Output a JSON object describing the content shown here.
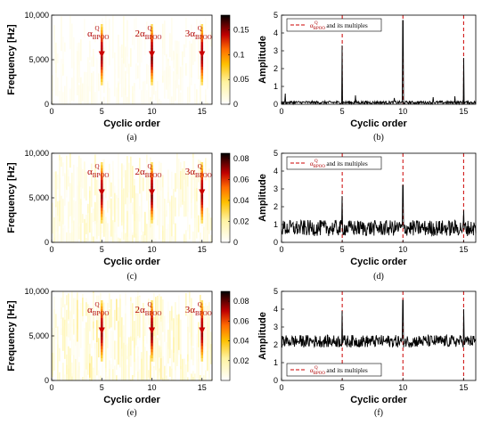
{
  "figure": {
    "captions": [
      "(a)",
      "(b)",
      "(c)",
      "(d)",
      "(e)",
      "(f)"
    ]
  },
  "colors": {
    "colormap_low": "#ffffff",
    "colormap_mid": "#ffcc00",
    "colormap_high": "#000000",
    "peak_red": "#cc0000",
    "annotation_red": "#b00000",
    "line": "#000000"
  },
  "chart_data": [
    {
      "type": "heatmap",
      "panel": "a",
      "xlabel": "Cyclic order",
      "ylabel": "Frequency [Hz]",
      "xlim": [
        0,
        16
      ],
      "ylim": [
        0,
        10000
      ],
      "x_ticks": [
        0,
        5,
        10,
        15
      ],
      "x_tick_labels": [
        "0",
        "5",
        "10",
        "15"
      ],
      "y_ticks": [
        0,
        5000,
        10000
      ],
      "y_tick_labels": [
        "0",
        "5,000",
        "10,000"
      ],
      "colorbar_ticks": [
        0,
        0.05,
        0.1,
        0.15
      ],
      "colorbar_tick_labels": [
        "0",
        "0.05",
        "0.1",
        "0.15"
      ],
      "colorbar_max": 0.18,
      "peaks": [
        5,
        10,
        15
      ],
      "peak_band_hz": [
        2500,
        9000
      ],
      "annotations": [
        {
          "prefix": "α",
          "sub": "BPOO",
          "sup": "Q",
          "x": 5
        },
        {
          "prefix": "2α",
          "sub": "BPOO",
          "sup": "Q",
          "x": 10
        },
        {
          "prefix": "3α",
          "sub": "BPOO",
          "sup": "Q",
          "x": 15
        }
      ],
      "noise_level": 0.12
    },
    {
      "type": "line",
      "panel": "b",
      "xlabel": "Cyclic order",
      "ylabel": "Amplitude",
      "xlim": [
        0,
        16
      ],
      "ylim": [
        0,
        5
      ],
      "x_ticks": [
        0,
        5,
        10,
        15
      ],
      "x_tick_labels": [
        "0",
        "5",
        "10",
        "15"
      ],
      "y_ticks": [
        0,
        1,
        2,
        3,
        4,
        5
      ],
      "y_tick_labels": [
        "0",
        "1",
        "2",
        "3",
        "4",
        "5"
      ],
      "legend": {
        "symbol": "α",
        "sub": "BPOO",
        "sup": "Q",
        "text": "and its multiples",
        "position": "top-left"
      },
      "marker_lines": [
        5,
        10,
        15
      ],
      "baseline": 0.1,
      "noise_amp": 0.1,
      "peaks": [
        {
          "x": 5,
          "y": 3.3
        },
        {
          "x": 10,
          "y": 4.7
        },
        {
          "x": 15,
          "y": 2.6
        }
      ],
      "minor_peaks": [
        {
          "x": 0.3,
          "y": 0.6
        },
        {
          "x": 6.1,
          "y": 0.5
        },
        {
          "x": 9.3,
          "y": 0.35
        },
        {
          "x": 12.5,
          "y": 0.4
        },
        {
          "x": 14.3,
          "y": 0.45
        }
      ]
    },
    {
      "type": "heatmap",
      "panel": "c",
      "xlabel": "Cyclic order",
      "ylabel": "Frequency [Hz]",
      "xlim": [
        0,
        16
      ],
      "ylim": [
        0,
        10000
      ],
      "x_ticks": [
        0,
        5,
        10,
        15
      ],
      "x_tick_labels": [
        "0",
        "5",
        "10",
        "15"
      ],
      "y_ticks": [
        0,
        5000,
        10000
      ],
      "y_tick_labels": [
        "0",
        "5,000",
        "10,000"
      ],
      "colorbar_ticks": [
        0,
        0.02,
        0.04,
        0.06,
        0.08
      ],
      "colorbar_tick_labels": [
        "0",
        "0.02",
        "0.04",
        "0.06",
        "0.08"
      ],
      "colorbar_max": 0.085,
      "peaks": [
        5,
        10,
        15
      ],
      "peak_band_hz": [
        2500,
        9000
      ],
      "annotations": [
        {
          "prefix": "α",
          "sub": "BPOO",
          "sup": "Q",
          "x": 5
        },
        {
          "prefix": "2α",
          "sub": "BPOO",
          "sup": "Q",
          "x": 10
        },
        {
          "prefix": "3α",
          "sub": "BPOO",
          "sup": "Q",
          "x": 15
        }
      ],
      "noise_level": 0.28
    },
    {
      "type": "line",
      "panel": "d",
      "xlabel": "Cyclic order",
      "ylabel": "Amplitude",
      "xlim": [
        0,
        16
      ],
      "ylim": [
        0,
        5
      ],
      "x_ticks": [
        0,
        5,
        10,
        15
      ],
      "x_tick_labels": [
        "0",
        "5",
        "10",
        "15"
      ],
      "y_ticks": [
        0,
        1,
        2,
        3,
        4,
        5
      ],
      "y_tick_labels": [
        "0",
        "1",
        "2",
        "3",
        "4",
        "5"
      ],
      "legend": {
        "symbol": "α",
        "sub": "BPOO",
        "sup": "Q",
        "text": "and its multiples",
        "position": "top-left"
      },
      "marker_lines": [
        5,
        10,
        15
      ],
      "baseline": 0.8,
      "noise_amp": 0.45,
      "peaks": [
        {
          "x": 5,
          "y": 2.6
        },
        {
          "x": 10,
          "y": 3.2
        },
        {
          "x": 15,
          "y": 1.8
        }
      ],
      "minor_peaks": []
    },
    {
      "type": "heatmap",
      "panel": "e",
      "xlabel": "Cyclic order",
      "ylabel": "Frequency [Hz]",
      "xlim": [
        0,
        16
      ],
      "ylim": [
        0,
        10000
      ],
      "x_ticks": [
        0,
        5,
        10,
        15
      ],
      "x_tick_labels": [
        "0",
        "5",
        "10",
        "15"
      ],
      "y_ticks": [
        0,
        5000,
        10000
      ],
      "y_tick_labels": [
        "0",
        "5,000",
        "10,000"
      ],
      "colorbar_ticks": [
        0.02,
        0.04,
        0.06,
        0.08
      ],
      "colorbar_tick_labels": [
        "0.02",
        "0.04",
        "0.06",
        "0.08"
      ],
      "colorbar_max": 0.09,
      "peaks": [
        5,
        10,
        15
      ],
      "peak_band_hz": [
        2500,
        9000
      ],
      "annotations": [
        {
          "prefix": "α",
          "sub": "BPOO",
          "sup": "Q",
          "x": 5
        },
        {
          "prefix": "2α",
          "sub": "BPOO",
          "sup": "Q",
          "x": 10
        },
        {
          "prefix": "3α",
          "sub": "BPOO",
          "sup": "Q",
          "x": 15
        }
      ],
      "noise_level": 0.38
    },
    {
      "type": "line",
      "panel": "f",
      "xlabel": "Cyclic order",
      "ylabel": "Amplitude",
      "xlim": [
        0,
        16
      ],
      "ylim": [
        0,
        5
      ],
      "x_ticks": [
        0,
        5,
        10,
        15
      ],
      "x_tick_labels": [
        "0",
        "5",
        "10",
        "15"
      ],
      "y_ticks": [
        0,
        1,
        2,
        3,
        4,
        5
      ],
      "y_tick_labels": [
        "0",
        "1",
        "2",
        "3",
        "4",
        "5"
      ],
      "legend": {
        "symbol": "α",
        "sub": "BPOO",
        "sup": "Q",
        "text": "and its multiples",
        "position": "bottom-left"
      },
      "marker_lines": [
        5,
        10,
        15
      ],
      "baseline": 2.2,
      "noise_amp": 0.35,
      "peaks": [
        {
          "x": 5,
          "y": 3.9
        },
        {
          "x": 10,
          "y": 4.5
        },
        {
          "x": 15,
          "y": 4.0
        }
      ],
      "minor_peaks": []
    }
  ]
}
